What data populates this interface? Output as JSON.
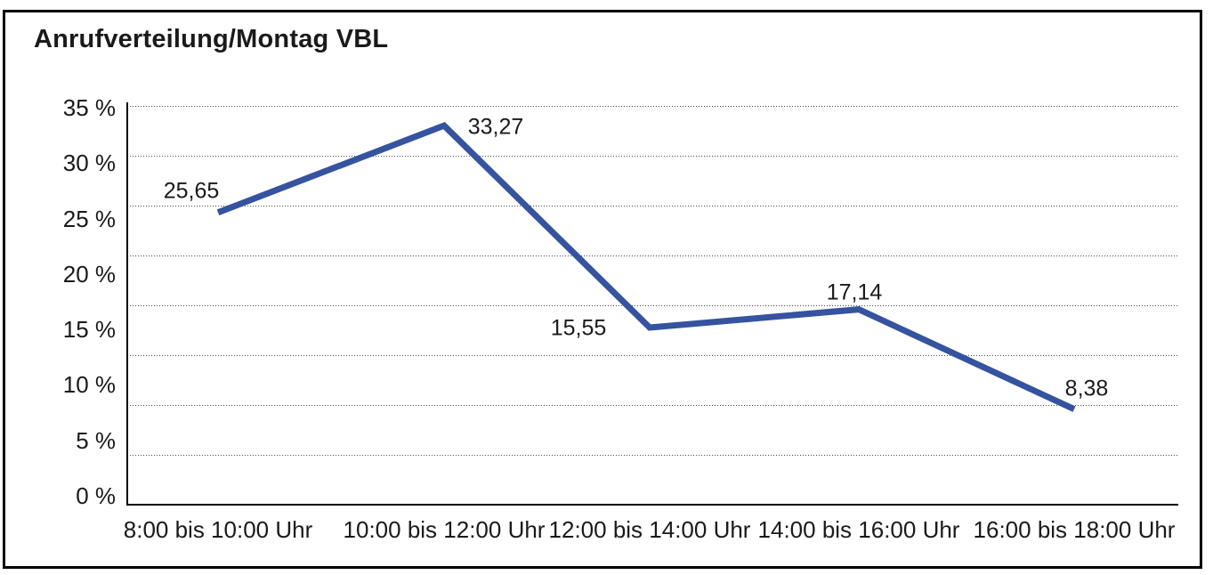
{
  "title": "Anrufverteilung/Montag VBL",
  "chart_data": {
    "type": "line",
    "title": "Anrufverteilung/Montag VBL",
    "categories": [
      "8:00 bis 10:00 Uhr",
      "10:00 bis 12:00 Uhr",
      "12:00 bis 14:00 Uhr",
      "14:00 bis 16:00 Uhr",
      "16:00 bis 18:00 Uhr"
    ],
    "values": [
      25.65,
      33.27,
      15.55,
      17.14,
      8.38
    ],
    "value_labels": [
      "25,65",
      "33,27",
      "15,55",
      "17,14",
      "8,38"
    ],
    "y_ticks": [
      "35 %",
      "30 %",
      "25 %",
      "20 %",
      "15 %",
      "10 %",
      "5 %",
      "0 %"
    ],
    "ylim": [
      0,
      35
    ],
    "xlabel": "",
    "ylabel": "",
    "legend": "none",
    "grid": "horizontal-dotted",
    "line_color": "#35539F",
    "axis_color": "#000000",
    "text_color": "#1a1a1a"
  }
}
